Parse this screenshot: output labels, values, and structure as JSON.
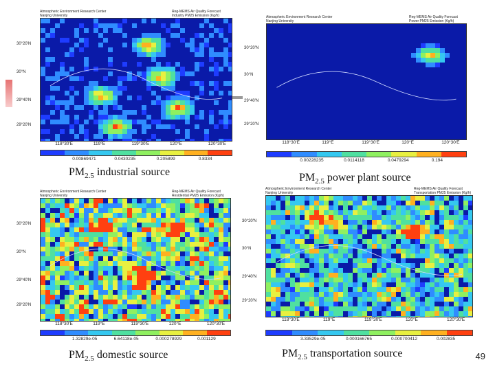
{
  "colors": {
    "bg": "#0a1aa8",
    "scale": [
      "#1e3cff",
      "#2f8cff",
      "#35c8f0",
      "#4fe0a0",
      "#8ff060",
      "#e8f040",
      "#ffb020",
      "#ff4010"
    ]
  },
  "panels": [
    {
      "id": "industrial",
      "header_left": [
        "Atmospheric Environment Research Center",
        "Nanjing University"
      ],
      "header_right": [
        "Reg-MEMS Air Quality Forecast",
        "Industry PM25 Emission (Kg/h)"
      ],
      "lat_ticks": [
        "30°20'N",
        "30°N",
        "29°40'N",
        "29°20'N"
      ],
      "lon_ticks": [
        "118°30'E",
        "119°E",
        "119°30'E",
        "120°E",
        "120°30'E"
      ],
      "cbar_ticks": [
        "0.00869471",
        "0.0430235",
        "0.205899",
        "0.8334"
      ],
      "caption_main": "PM",
      "caption_sub": "2.5",
      "caption_rest": " industrial source",
      "density": 0.18,
      "hot": [
        [
          0.3,
          0.6
        ],
        [
          0.55,
          0.2
        ],
        [
          0.62,
          0.45
        ],
        [
          0.38,
          0.85
        ],
        [
          0.7,
          0.7
        ]
      ]
    },
    {
      "id": "power",
      "header_left": [
        "Atmospheric Environment Research Center",
        "Nanjing University"
      ],
      "header_right": [
        "Reg-MEMS Air Quality Forecast",
        "Power PM25 Emission (Kg/h)"
      ],
      "lat_ticks": [
        "30°20'N",
        "30°N",
        "29°40'N",
        "29°20'N"
      ],
      "lon_ticks": [
        "118°30'E",
        "119°E",
        "119°30'E",
        "120°E",
        "120°30'E"
      ],
      "cbar_ticks": [
        "0.00228235",
        "0.0114118",
        "0.0479294",
        "0.194"
      ],
      "caption_main": "PM",
      "caption_sub": "2.5",
      "caption_rest": "  power plant source",
      "density": 0.05,
      "hot": [
        [
          0.8,
          0.25
        ]
      ]
    },
    {
      "id": "domestic",
      "header_left": [
        "Atmospheric Environment Research Center",
        "Nanjing University"
      ],
      "header_right": [
        "Reg-MEMS Air Quality Forecast",
        "Residential PM25 Emission (Kg/h)"
      ],
      "lat_ticks": [
        "30°20'N",
        "30°N",
        "29°40'N",
        "29°20'N"
      ],
      "lon_ticks": [
        "118°30'E",
        "119°E",
        "119°30'E",
        "120°E",
        "120°30'E"
      ],
      "cbar_ticks": [
        "1.32829e-05",
        "6.64118e-05",
        "0.000278929",
        "0.001129"
      ],
      "caption_main": "PM",
      "caption_sub": "2.5",
      "caption_rest": " domestic source",
      "density": 0.85,
      "hot": [
        [
          0.68,
          0.22
        ],
        [
          0.3,
          0.2
        ],
        [
          0.5,
          0.6
        ]
      ]
    },
    {
      "id": "transportation",
      "header_left": [
        "Atmospheric Environment Research Center",
        "Nanjing University"
      ],
      "header_right": [
        "Reg-MEMS Air Quality Forecast",
        "Transportation PM25 Emission (Kg/h)"
      ],
      "lat_ticks": [
        "30°20'N",
        "30°N",
        "29°40'N",
        "29°20'N"
      ],
      "lon_ticks": [
        "118°30'E",
        "119°E",
        "119°30'E",
        "120°E",
        "120°30'E"
      ],
      "cbar_ticks": [
        "3.33529e-05",
        "0.000166765",
        "0.000700412",
        "0.002835"
      ],
      "caption_main": "PM",
      "caption_sub": "2.5",
      "caption_rest": " transportation source",
      "density": 0.6,
      "hot": [
        [
          0.7,
          0.25
        ],
        [
          0.25,
          0.15
        ]
      ]
    }
  ],
  "page_number": "49"
}
